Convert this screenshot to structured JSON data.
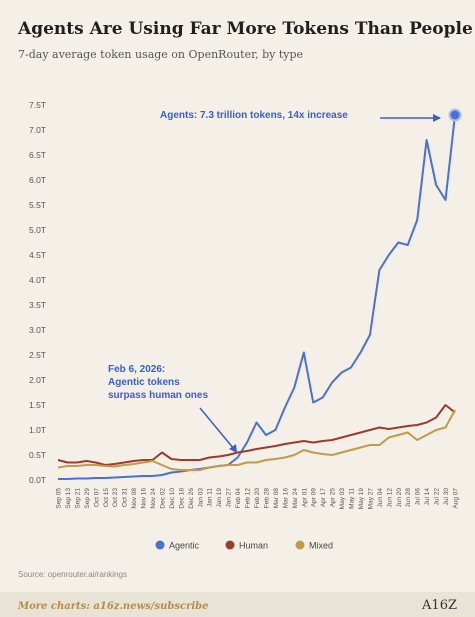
{
  "chart_data": {
    "type": "line",
    "title": "Agents Are Using Far More Tokens Than People",
    "subtitle": "7-day average token usage on OpenRouter, by type",
    "categories": [
      "Sep 05",
      "Sep 13",
      "Sep 21",
      "Sep 29",
      "Oct 07",
      "Oct 15",
      "Oct 23",
      "Oct 31",
      "Nov 08",
      "Nov 16",
      "Nov 24",
      "Dec 02",
      "Dec 10",
      "Dec 18",
      "Dec 26",
      "Jan 03",
      "Jan 11",
      "Jan 19",
      "Jan 27",
      "Feb 04",
      "Feb 12",
      "Feb 20",
      "Feb 28",
      "Mar 08",
      "Mar 16",
      "Mar 24",
      "Apr 01",
      "Apr 09",
      "Apr 17",
      "Apr 25",
      "May 03",
      "May 11",
      "May 19",
      "May 27",
      "Jun 04",
      "Jun 12",
      "Jun 20",
      "Jun 28",
      "Jul 06",
      "Jul 14",
      "Jul 22",
      "Jul 30",
      "Aug 07"
    ],
    "series": [
      {
        "name": "Agentic",
        "color": "#4a6fd6",
        "values": [
          0.02,
          0.02,
          0.03,
          0.03,
          0.04,
          0.04,
          0.05,
          0.06,
          0.07,
          0.08,
          0.08,
          0.1,
          0.15,
          0.17,
          0.2,
          0.22,
          0.25,
          0.28,
          0.3,
          0.45,
          0.75,
          1.15,
          0.9,
          1.0,
          1.45,
          1.85,
          2.55,
          1.55,
          1.65,
          1.95,
          2.15,
          2.25,
          2.55,
          2.9,
          4.2,
          4.5,
          4.75,
          4.7,
          5.2,
          6.8,
          5.9,
          5.6,
          7.3
        ]
      },
      {
        "name": "Human",
        "color": "#9b3b2c",
        "values": [
          0.4,
          0.35,
          0.35,
          0.38,
          0.35,
          0.3,
          0.32,
          0.35,
          0.38,
          0.4,
          0.4,
          0.55,
          0.42,
          0.4,
          0.4,
          0.4,
          0.45,
          0.47,
          0.5,
          0.55,
          0.58,
          0.62,
          0.65,
          0.68,
          0.72,
          0.75,
          0.78,
          0.75,
          0.78,
          0.8,
          0.85,
          0.9,
          0.95,
          1.0,
          1.05,
          1.02,
          1.05,
          1.08,
          1.1,
          1.15,
          1.25,
          1.5,
          1.35
        ]
      },
      {
        "name": "Mixed",
        "color": "#c49a45",
        "values": [
          0.25,
          0.28,
          0.28,
          0.3,
          0.3,
          0.28,
          0.27,
          0.3,
          0.32,
          0.35,
          0.38,
          0.3,
          0.22,
          0.2,
          0.2,
          0.2,
          0.25,
          0.28,
          0.3,
          0.3,
          0.35,
          0.35,
          0.4,
          0.42,
          0.45,
          0.5,
          0.6,
          0.55,
          0.52,
          0.5,
          0.55,
          0.6,
          0.65,
          0.7,
          0.7,
          0.85,
          0.9,
          0.95,
          0.8,
          0.9,
          1.0,
          1.05,
          1.4
        ]
      }
    ],
    "ylim": [
      0,
      7.5
    ],
    "yticks": [
      {
        "value": 0,
        "label": "0.0T"
      },
      {
        "value": 0.5,
        "label": "0.5T"
      },
      {
        "value": 1,
        "label": "1.0T"
      },
      {
        "value": 1.5,
        "label": "1.5T"
      },
      {
        "value": 2,
        "label": "2.0T"
      },
      {
        "value": 2.5,
        "label": "2.5T"
      },
      {
        "value": 3,
        "label": "3.0T"
      },
      {
        "value": 3.5,
        "label": "3.5T"
      },
      {
        "value": 4,
        "label": "4.0T"
      },
      {
        "value": 4.5,
        "label": "4.5T"
      },
      {
        "value": 5,
        "label": "5.0T"
      },
      {
        "value": 5.5,
        "label": "5.5T"
      },
      {
        "value": 6,
        "label": "6.0T"
      },
      {
        "value": 6.5,
        "label": "6.5T"
      },
      {
        "value": 7,
        "label": "7.0T"
      },
      {
        "value": 7.5,
        "label": "7.5T"
      }
    ],
    "annotations": [
      "Agents: 7.3 trillion tokens, 14x increase",
      "Feb 6, 2026:",
      "Agentic tokens",
      "surpass human ones"
    ],
    "source": "Source: openrouter.ai/rankings",
    "footer": "More charts: a16z.news/subscribe",
    "logo": "A16Z"
  }
}
